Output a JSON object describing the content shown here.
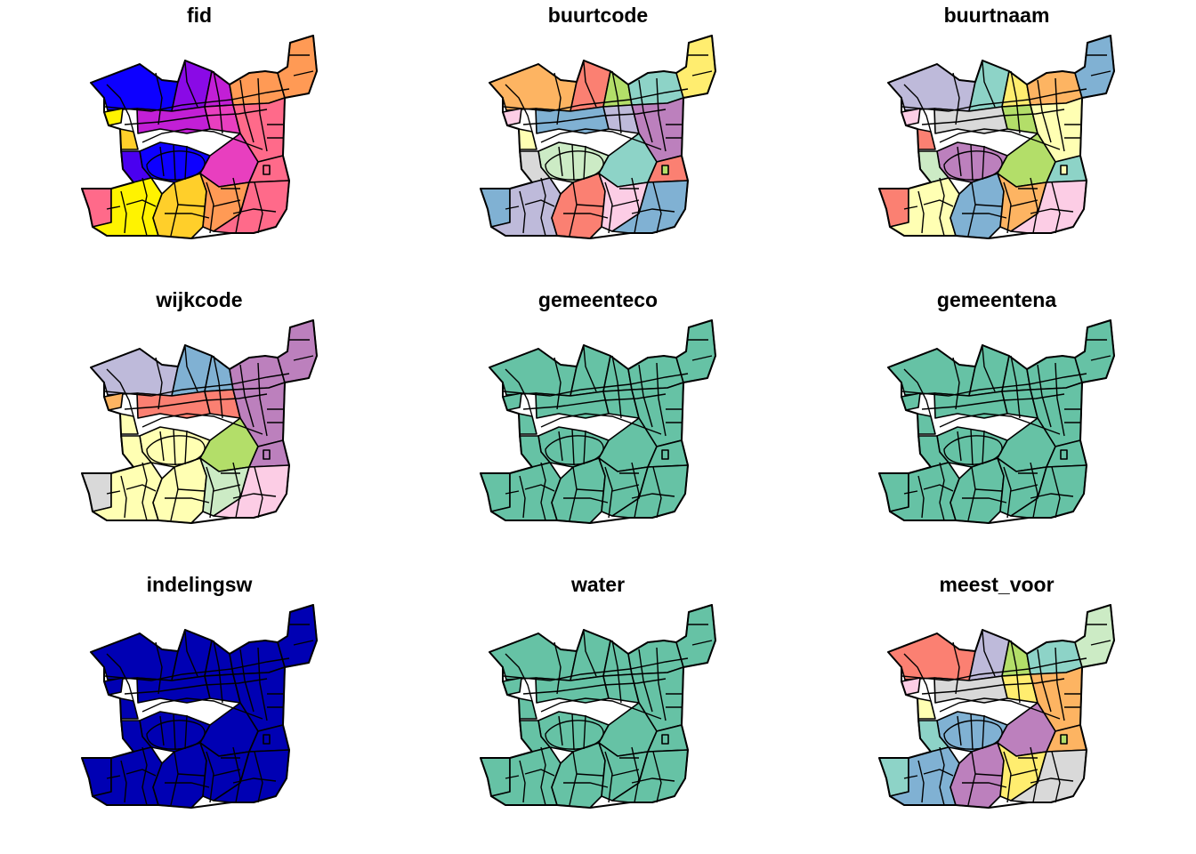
{
  "figure": {
    "panels": [
      {
        "title": "fid",
        "scheme": "fid"
      },
      {
        "title": "buurtcode",
        "scheme": "buurtcode"
      },
      {
        "title": "buurtnaam",
        "scheme": "buurtnaam"
      },
      {
        "title": "wijkcode",
        "scheme": "wijkcode"
      },
      {
        "title": "gemeenteco",
        "scheme": "uniform_green"
      },
      {
        "title": "gemeentena",
        "scheme": "uniform_green"
      },
      {
        "title": "indelingsw",
        "scheme": "uniform_blue"
      },
      {
        "title": "water",
        "scheme": "uniform_green"
      },
      {
        "title": "meest_voor",
        "scheme": "meest_voor"
      }
    ]
  },
  "colors": {
    "border": "#000000",
    "background": "#ffffff",
    "uniform_green": "#66c2a5",
    "uniform_blue": "#0000b3",
    "fid_ramp": [
      "#0d00ff",
      "#4a00f0",
      "#8a0ae6",
      "#c21fd6",
      "#e83fbf",
      "#ff6a8a",
      "#ff9a55",
      "#ffcf2a",
      "#fff300"
    ],
    "qualitative": [
      "#8dd3c7",
      "#ffffb3",
      "#bebada",
      "#fb8072",
      "#80b1d3",
      "#fdb462",
      "#b3de69",
      "#fccde5",
      "#d9d9d9",
      "#bc80bd",
      "#ccebc5",
      "#ffed6f"
    ]
  }
}
